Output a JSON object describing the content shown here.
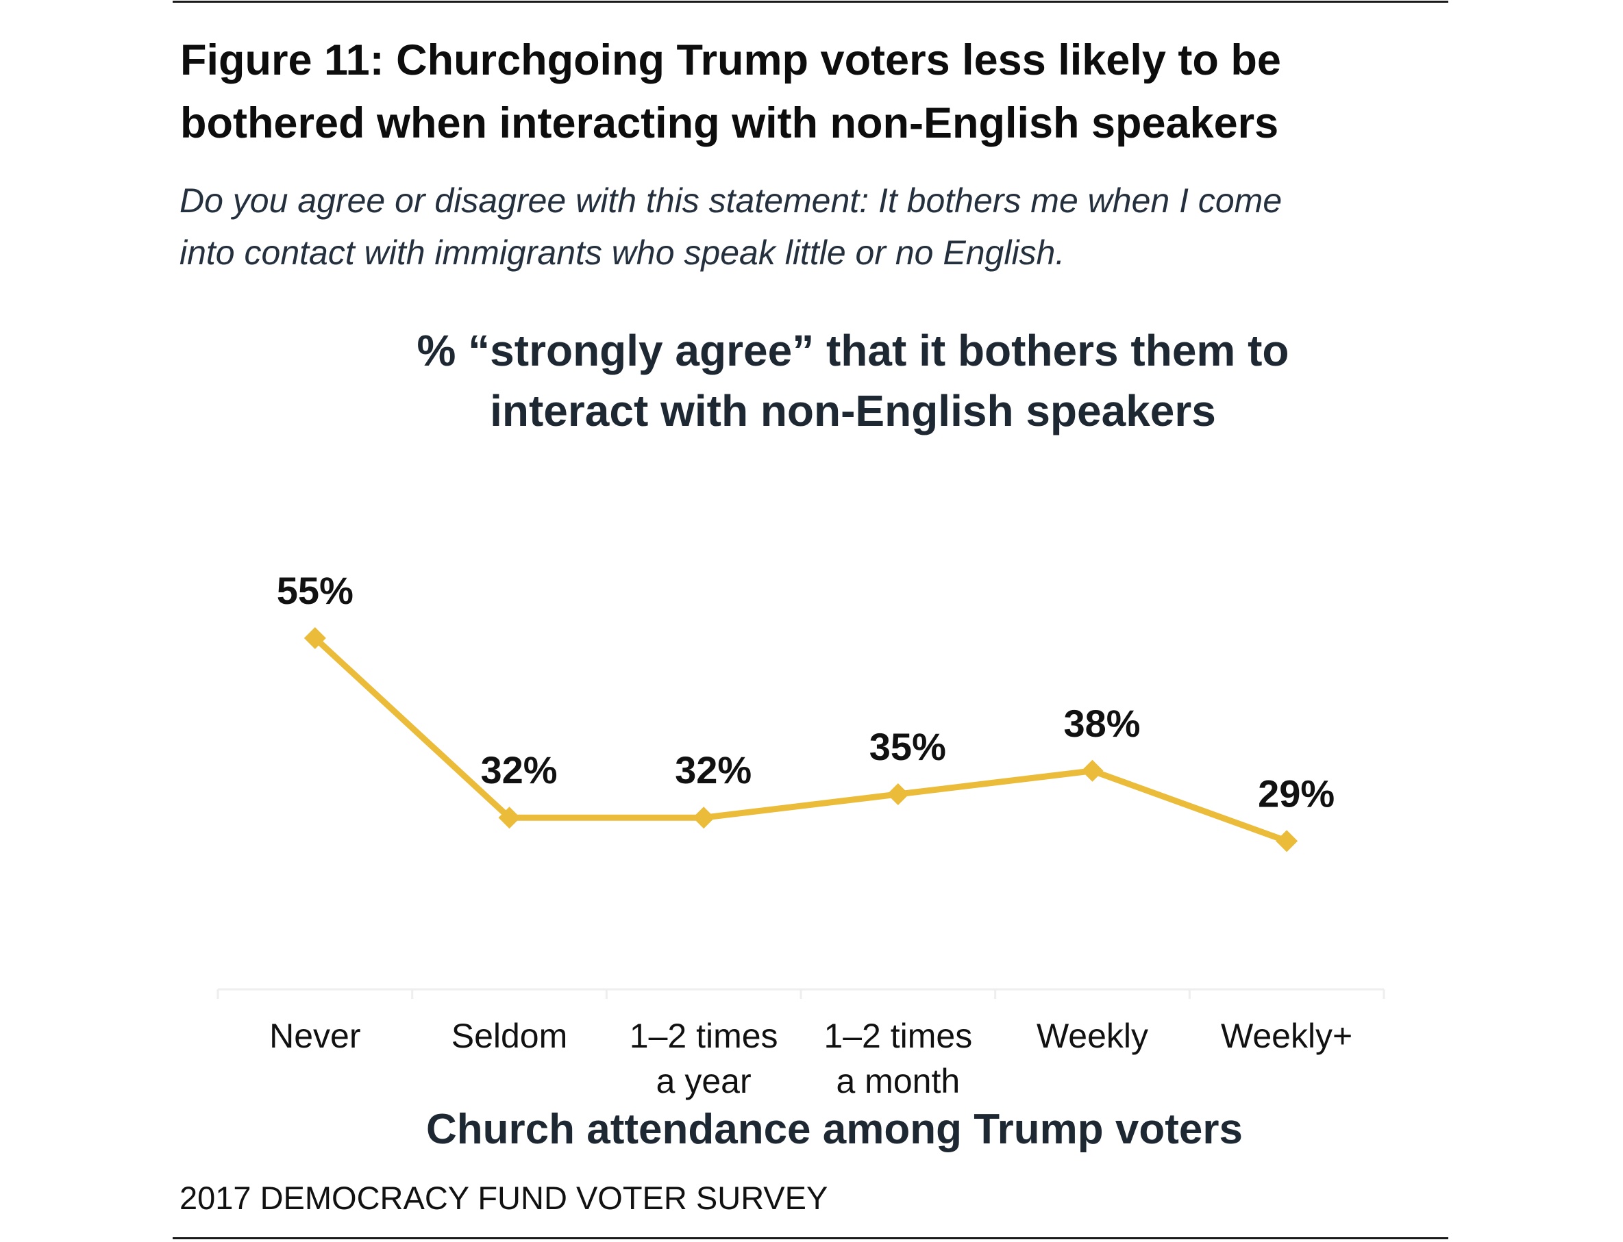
{
  "figure_title": [
    "Figure 11: Churchgoing Trump voters less likely to be",
    "bothered when interacting with non-English speakers"
  ],
  "subtitle": [
    "Do you agree or disagree with this statement: It bothers me when I come",
    "into contact with immigrants who speak little or no English."
  ],
  "footer": "2017 DEMOCRACY FUND VOTER SURVEY",
  "chart_data": {
    "type": "line",
    "title": [
      "% “strongly agree” that it bothers them to",
      "interact with non-English speakers"
    ],
    "xlabel": "Church attendance among Trump voters",
    "ylabel": "",
    "categories": [
      [
        "Never"
      ],
      [
        "Seldom"
      ],
      [
        "1–2 times",
        "a year"
      ],
      [
        "1–2 times",
        "a month"
      ],
      [
        "Weekly"
      ],
      [
        "Weekly+"
      ]
    ],
    "values": [
      55,
      32,
      32,
      35,
      38,
      29
    ],
    "data_labels": [
      "55%",
      "32%",
      "32%",
      "35%",
      "38%",
      "29%"
    ],
    "ylim": [
      10,
      60
    ],
    "grid": false,
    "marker": "diamond",
    "colors": {
      "line": "#EBBB3A",
      "labels": "#111111",
      "axis": "#eeeeee"
    }
  }
}
